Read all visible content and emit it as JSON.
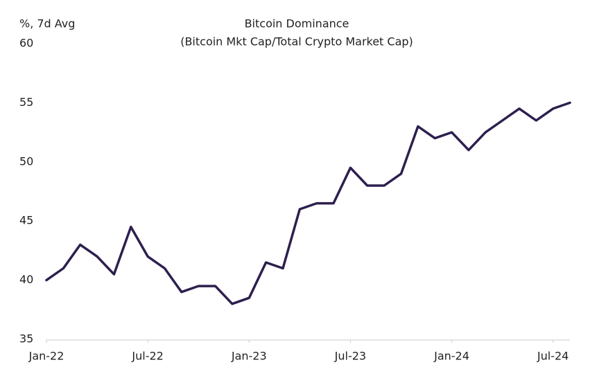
{
  "chart_data": {
    "type": "line",
    "title": "Bitcoin Dominance",
    "subtitle": "(Bitcoin Mkt Cap/Total Crypto Market Cap)",
    "y_axis_label": "%, 7d Avg",
    "x": [
      "2022-01",
      "2022-02",
      "2022-03",
      "2022-04",
      "2022-05",
      "2022-06",
      "2022-07",
      "2022-08",
      "2022-09",
      "2022-10",
      "2022-11",
      "2022-12",
      "2023-01",
      "2023-02",
      "2023-03",
      "2023-04",
      "2023-05",
      "2023-06",
      "2023-07",
      "2023-08",
      "2023-09",
      "2023-10",
      "2023-11",
      "2023-12",
      "2024-01",
      "2024-02",
      "2024-03",
      "2024-04",
      "2024-05",
      "2024-06",
      "2024-07",
      "2024-08"
    ],
    "series": [
      {
        "name": "Bitcoin Dominance",
        "color": "#2d1f4e",
        "values": [
          40,
          41,
          43,
          42,
          40.5,
          44.5,
          42,
          41,
          39,
          39.5,
          39.5,
          38,
          38.5,
          41.5,
          41,
          46,
          46.5,
          46.5,
          49.5,
          48,
          48,
          49,
          53,
          52,
          52.5,
          51,
          52.5,
          53.5,
          54.5,
          53.5,
          54.5,
          55
        ]
      }
    ],
    "xlim": [
      "2022-01",
      "2024-08"
    ],
    "xticks": [
      {
        "value": "2022-01",
        "label": "Jan-22"
      },
      {
        "value": "2022-07",
        "label": "Jul-22"
      },
      {
        "value": "2023-01",
        "label": "Jan-23"
      },
      {
        "value": "2023-07",
        "label": "Jul-23"
      },
      {
        "value": "2024-01",
        "label": "Jan-24"
      },
      {
        "value": "2024-07",
        "label": "Jul-24"
      }
    ],
    "ylim": [
      35,
      60
    ],
    "yticks": [
      35,
      40,
      45,
      50,
      55,
      60
    ],
    "grid": false
  }
}
